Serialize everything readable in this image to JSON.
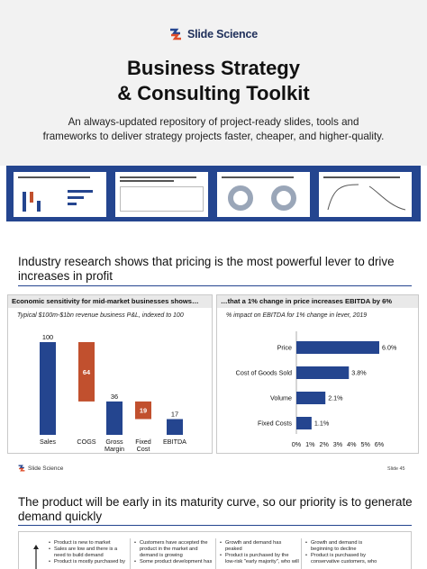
{
  "brand": {
    "name": "Slide Science"
  },
  "hero": {
    "title_line1": "Business Strategy",
    "title_line2": "& Consulting Toolkit",
    "subtitle_line1": "An always-updated repository of project-ready slides, tools and",
    "subtitle_line2": "frameworks to deliver strategy projects faster, cheaper, and higher-quality."
  },
  "colors": {
    "navy": "#24458f",
    "red": "#c1502e",
    "panel_head": "#e9e9e9"
  },
  "slide1": {
    "title": "Industry research shows that pricing is the most powerful lever to drive increases in profit",
    "footer_brand": "Slide Science",
    "slide_number": "Slide 45",
    "left_panel": {
      "header": "Economic sensitivity for mid-market businesses shows…",
      "subtitle": "Typical $100m-$1bn revenue business P&L, indexed to 100"
    },
    "right_panel": {
      "header": "…that a 1% change in price increases EBITDA by 6%",
      "subtitle": "% impact on EBITDA for 1% change in lever, 2019"
    }
  },
  "chart_data": [
    {
      "type": "bar",
      "subtype": "waterfall",
      "categories": [
        "Sales",
        "COGS",
        "Gross Margin",
        "Fixed Cost",
        "EBITDA"
      ],
      "values": [
        100,
        64,
        36,
        19,
        17
      ],
      "colors": [
        "#24458f",
        "#c1502e",
        "#24458f",
        "#c1502e",
        "#24458f"
      ],
      "ylim": [
        0,
        100
      ]
    },
    {
      "type": "bar",
      "orientation": "horizontal",
      "categories": [
        "Price",
        "Cost of Goods Sold",
        "Volume",
        "Fixed Costs"
      ],
      "values": [
        6.0,
        3.8,
        2.1,
        1.1
      ],
      "value_labels": [
        "6.0%",
        "3.8%",
        "2.1%",
        "1.1%"
      ],
      "xticks": [
        "0%",
        "1%",
        "2%",
        "3%",
        "4%",
        "5%",
        "6%"
      ],
      "xlim": [
        0,
        6
      ]
    }
  ],
  "slide2": {
    "title": "The product will be early in its maturity curve, so our priority is to generate demand quickly",
    "columns": [
      [
        "Product is new to market",
        "Sales are low and there is a need to build demand",
        "Product is mostly purchased by"
      ],
      [
        "Customers have accepted the product in the market and demand is growing",
        "Some product development has"
      ],
      [
        "Growth and demand has peaked",
        "Product is purchased by the low-risk \"early majority\", who will"
      ],
      [
        "Growth and demand is beginning to decline",
        "Product is purchased by conservative customers, who"
      ]
    ]
  }
}
